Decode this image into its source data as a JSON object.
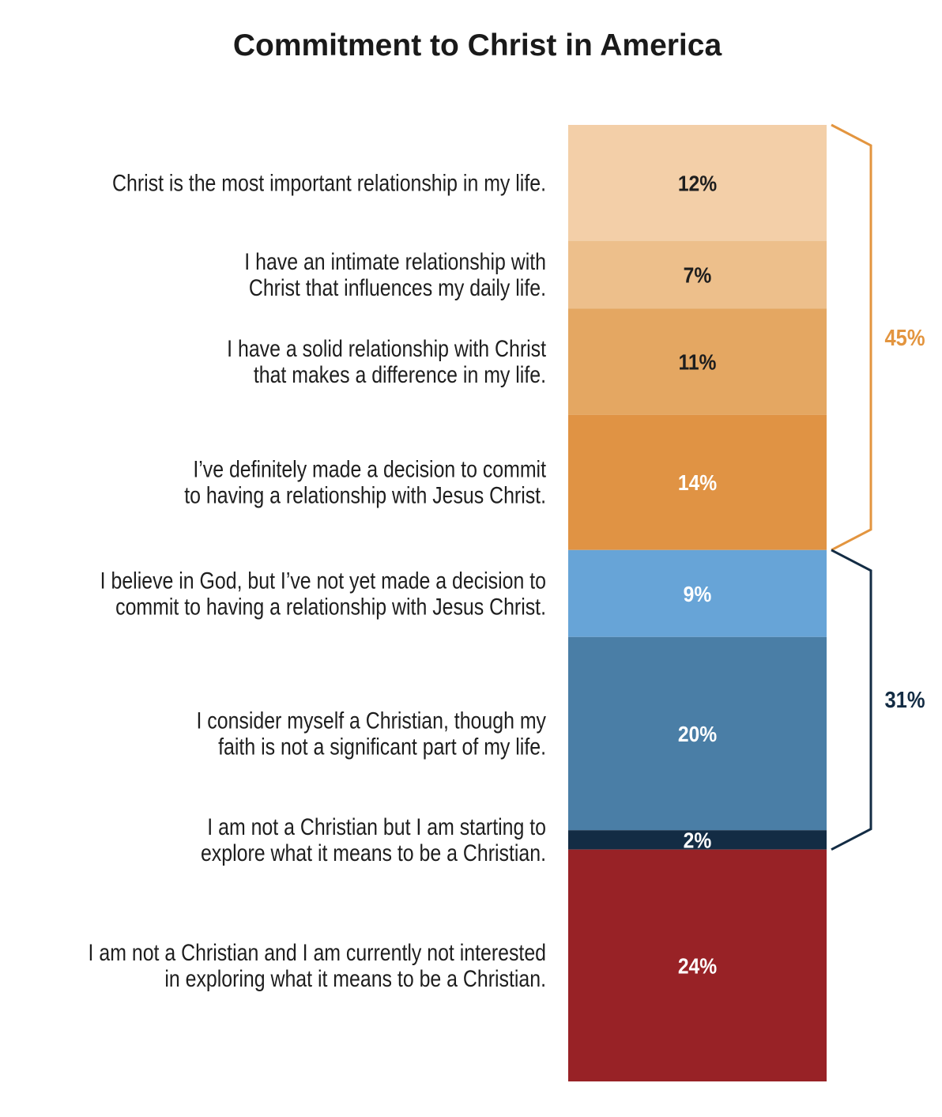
{
  "chart_data": {
    "type": "bar",
    "subtype": "single stacked bar",
    "title": "Commitment to Christ in America",
    "categories": [
      [
        "Christ is the most important relationship in my life."
      ],
      [
        "I have an intimate relationship with",
        "Christ that influences my daily life."
      ],
      [
        "I have a solid relationship with Christ",
        "that makes a difference in my life."
      ],
      [
        "I’ve definitely made a decision to commit",
        "to having a relationship with Jesus Christ."
      ],
      [
        "I believe in God, but I’ve not yet made a decision to",
        "commit to having a relationship with Jesus Christ."
      ],
      [
        "I consider myself a Christian, though my",
        "faith is not a significant part of my life."
      ],
      [
        "I am not a Christian but I am starting to",
        "explore what it means to be a Christian."
      ],
      [
        "I am not a Christian and I am currently not interested",
        "in exploring what it means to be a Christian."
      ]
    ],
    "values": [
      12,
      7,
      11,
      14,
      9,
      20,
      2,
      24
    ],
    "value_labels": [
      "12%",
      "7%",
      "11%",
      "14%",
      "9%",
      "20%",
      "2%",
      "24%"
    ],
    "colors": [
      "#F3CFA8",
      "#EDBF8B",
      "#E4A762",
      "#E09344",
      "#67A4D7",
      "#4A7EA6",
      "#132C44",
      "#982226"
    ],
    "label_colors": [
      "#1e1e1e",
      "#1e1e1e",
      "#1e1e1e",
      "#ffffff",
      "#ffffff",
      "#ffffff",
      "#ffffff",
      "#ffffff"
    ],
    "brackets": [
      {
        "label": "45%",
        "from": 0,
        "to": 3,
        "color": "#E3953F"
      },
      {
        "label": "31%",
        "from": 4,
        "to": 6,
        "color": "#132C44"
      }
    ],
    "unit": "%"
  }
}
